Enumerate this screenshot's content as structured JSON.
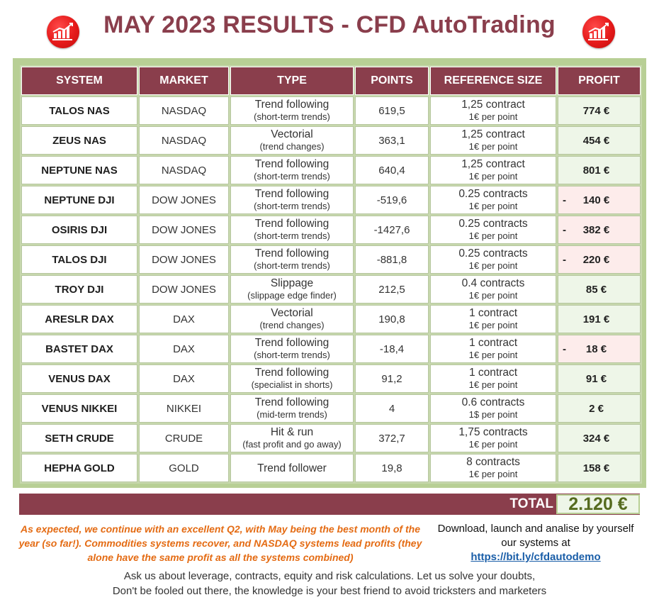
{
  "title": "MAY 2023 RESULTS - CFD AutoTrading",
  "columns": [
    "SYSTEM",
    "MARKET",
    "TYPE",
    "POINTS",
    "REFERENCE SIZE",
    "PROFIT"
  ],
  "rows": [
    {
      "system": "TALOS NAS",
      "market": "NASDAQ",
      "type": "Trend following",
      "type_sub": "(short-term trends)",
      "points": "619,5",
      "ref": "1,25 contract",
      "ref_sub": "1€ per point",
      "profit_sign": "",
      "profit": "774 €",
      "status": "positive"
    },
    {
      "system": "ZEUS NAS",
      "market": "NASDAQ",
      "type": "Vectorial",
      "type_sub": "(trend changes)",
      "points": "363,1",
      "ref": "1,25 contract",
      "ref_sub": "1€ per point",
      "profit_sign": "",
      "profit": "454 €",
      "status": "positive"
    },
    {
      "system": "NEPTUNE NAS",
      "market": "NASDAQ",
      "type": "Trend following",
      "type_sub": "(short-term trends)",
      "points": "640,4",
      "ref": "1,25 contract",
      "ref_sub": "1€ per point",
      "profit_sign": "",
      "profit": "801 €",
      "status": "positive"
    },
    {
      "system": "NEPTUNE DJI",
      "market": "DOW JONES",
      "type": "Trend following",
      "type_sub": "(short-term trends)",
      "points": "-519,6",
      "ref": "0.25 contracts",
      "ref_sub": "1€ per point",
      "profit_sign": "-",
      "profit": "140 €",
      "status": "negative"
    },
    {
      "system": "OSIRIS DJI",
      "market": "DOW JONES",
      "type": "Trend following",
      "type_sub": "(short-term trends)",
      "points": "-1427,6",
      "ref": "0.25 contracts",
      "ref_sub": "1€ per point",
      "profit_sign": "-",
      "profit": "382 €",
      "status": "negative"
    },
    {
      "system": "TALOS DJI",
      "market": "DOW JONES",
      "type": "Trend following",
      "type_sub": "(short-term trends)",
      "points": "-881,8",
      "ref": "0.25 contracts",
      "ref_sub": "1€ per point",
      "profit_sign": "-",
      "profit": "220 €",
      "status": "negative"
    },
    {
      "system": "TROY DJI",
      "market": "DOW JONES",
      "type": "Slippage",
      "type_sub": "(slippage edge finder)",
      "points": "212,5",
      "ref": "0.4 contracts",
      "ref_sub": "1€ per point",
      "profit_sign": "",
      "profit": "85 €",
      "status": "positive"
    },
    {
      "system": "ARESLR DAX",
      "market": "DAX",
      "type": "Vectorial",
      "type_sub": "(trend changes)",
      "points": "190,8",
      "ref": "1 contract",
      "ref_sub": "1€ per point",
      "profit_sign": "",
      "profit": "191 €",
      "status": "positive"
    },
    {
      "system": "BASTET DAX",
      "market": "DAX",
      "type": "Trend following",
      "type_sub": "(short-term trends)",
      "points": "-18,4",
      "ref": "1 contract",
      "ref_sub": "1€ per point",
      "profit_sign": "-",
      "profit": "18 €",
      "status": "negative"
    },
    {
      "system": "VENUS DAX",
      "market": "DAX",
      "type": "Trend following",
      "type_sub": "(specialist in shorts)",
      "points": "91,2",
      "ref": "1 contract",
      "ref_sub": "1€ per point",
      "profit_sign": "",
      "profit": "91 €",
      "status": "positive"
    },
    {
      "system": "VENUS NIKKEI",
      "market": "NIKKEI",
      "type": "Trend following",
      "type_sub": "(mid-term trends)",
      "points": "4",
      "ref": "0.6 contracts",
      "ref_sub": "1$ per point",
      "profit_sign": "",
      "profit": "2 €",
      "status": "positive"
    },
    {
      "system": "SETH CRUDE",
      "market": "CRUDE",
      "type": "Hit & run",
      "type_sub": "(fast profit and go away)",
      "points": "372,7",
      "ref": "1,75 contracts",
      "ref_sub": "1€ per point",
      "profit_sign": "",
      "profit": "324 €",
      "status": "positive"
    },
    {
      "system": "HEPHA GOLD",
      "market": "GOLD",
      "type": "Trend follower",
      "type_sub": "",
      "points": "19,8",
      "ref": "8 contracts",
      "ref_sub": "1€ per point",
      "profit_sign": "",
      "profit": "158 €",
      "status": "positive"
    }
  ],
  "total": {
    "label": "TOTAL",
    "value": "2.120 €"
  },
  "comment": "As expected, we continue with an excellent Q2, with May being the best month of the year (so far!). Commodities systems recover, and NASDAQ systems lead profits (they alone have the same profit as all the systems combined)",
  "download": {
    "text": "Download, launch and analise by yourself our systems at",
    "link": "https://bit.ly/cfdautodemo"
  },
  "footer": {
    "line1": "Ask us about leverage, contracts, equity and risk calculations. Let us solve your doubts,",
    "line2": "Don't be fooled out there, the knowledge is your best friend to avoid tricksters and marketers"
  },
  "colors": {
    "header_bg": "#8a3e4c",
    "frame": "#b8cf95",
    "positive_bg": "#eef6e8",
    "negative_bg": "#fdeceb",
    "comment": "#e46b13",
    "link": "#1a5ea8",
    "logo": "#e51a1a"
  },
  "icons": {
    "logo": "bar-chart-logo-icon"
  }
}
